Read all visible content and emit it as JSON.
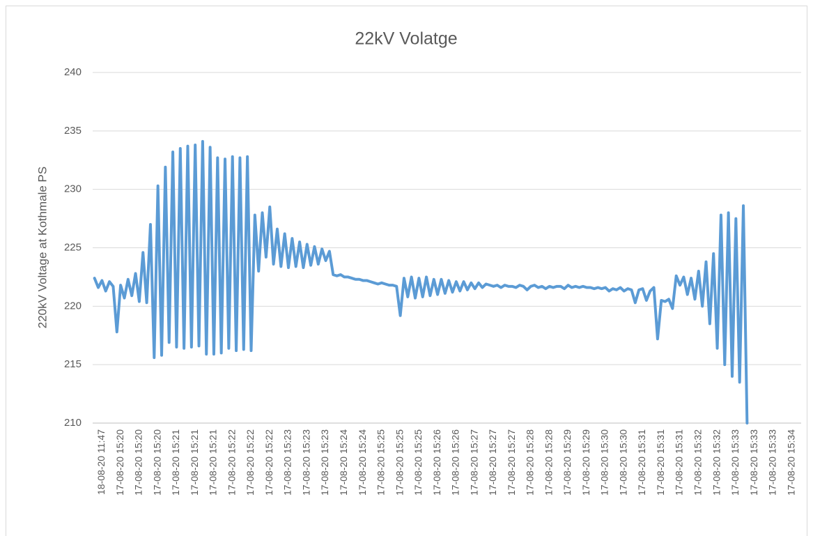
{
  "chart_data": {
    "type": "line",
    "title": "22kV Volatge",
    "y_label": "220kV Voltage at Kothmale PS",
    "categories": [
      null,
      null,
      "18-08-20 11:47",
      null,
      null,
      null,
      null,
      "17-08-20 15:20",
      null,
      null,
      null,
      null,
      "17-08-20 15:20",
      null,
      null,
      null,
      null,
      "17-08-20 15:20",
      null,
      null,
      null,
      null,
      "17-08-20 15:21",
      null,
      null,
      null,
      null,
      "17-08-20 15:21",
      null,
      null,
      null,
      null,
      "17-08-20 15:21",
      null,
      null,
      null,
      null,
      "17-08-20 15:22",
      null,
      null,
      null,
      null,
      "17-08-20 15:22",
      null,
      null,
      null,
      null,
      "17-08-20 15:22",
      null,
      null,
      null,
      null,
      "17-08-20 15:23",
      null,
      null,
      null,
      null,
      "17-08-20 15:23",
      null,
      null,
      null,
      null,
      "17-08-20 15:23",
      null,
      null,
      null,
      null,
      "17-08-20 15:24",
      null,
      null,
      null,
      null,
      "17-08-20 15:24",
      null,
      null,
      null,
      null,
      "17-08-20 15:25",
      null,
      null,
      null,
      null,
      "17-08-20 15:25",
      null,
      null,
      null,
      null,
      "17-08-20 15:25",
      null,
      null,
      null,
      null,
      "17-08-20 15:26",
      null,
      null,
      null,
      null,
      "17-08-20 15:26",
      null,
      null,
      null,
      null,
      "17-08-20 15:27",
      null,
      null,
      null,
      null,
      "17-08-20 15:27",
      null,
      null,
      null,
      null,
      "17-08-20 15:27",
      null,
      null,
      null,
      null,
      "17-08-20 15:28",
      null,
      null,
      null,
      null,
      "17-08-20 15:28",
      null,
      null,
      null,
      null,
      "17-08-20 15:29",
      null,
      null,
      null,
      null,
      "17-08-20 15:29",
      null,
      null,
      null,
      null,
      "17-08-20 15:30",
      null,
      null,
      null,
      null,
      "17-08-20 15:30",
      null,
      null,
      null,
      null,
      "17-08-20 15:31",
      null,
      null,
      null,
      null,
      "17-08-20 15:31",
      null,
      null,
      null,
      null,
      "17-08-20 15:31",
      null,
      null,
      null,
      null,
      "17-08-20 15:32",
      null,
      null,
      null,
      null,
      "17-08-20 15:32",
      null,
      null,
      null,
      null,
      "17-08-20 15:33",
      null,
      null,
      null,
      null,
      "17-08-20 15:33",
      null,
      null,
      null,
      null,
      "17-08-20 15:33",
      null,
      null,
      null,
      null,
      "17-08-20 15:34",
      null,
      null
    ],
    "series": [
      {
        "name": "220kV Voltage at Kothmale PS",
        "color": "#5b9bd5",
        "values": [
          222.4,
          221.6,
          222.2,
          221.3,
          222.1,
          221.7,
          217.8,
          221.8,
          220.7,
          222.3,
          220.9,
          222.8,
          220.4,
          224.6,
          220.3,
          227.0,
          215.6,
          230.3,
          215.8,
          231.9,
          216.9,
          233.2,
          216.5,
          233.5,
          216.4,
          233.7,
          216.5,
          233.8,
          216.6,
          234.1,
          215.9,
          233.6,
          215.9,
          232.7,
          216.0,
          232.6,
          216.4,
          232.8,
          216.2,
          232.7,
          216.3,
          232.8,
          216.2,
          227.8,
          223.0,
          228.0,
          224.2,
          228.5,
          223.6,
          226.6,
          223.4,
          226.2,
          223.3,
          225.8,
          223.4,
          225.5,
          223.3,
          225.3,
          223.5,
          225.1,
          223.6,
          224.9,
          223.9,
          224.7,
          222.7,
          222.6,
          222.7,
          222.5,
          222.5,
          222.4,
          222.3,
          222.3,
          222.2,
          222.2,
          222.1,
          222.0,
          221.9,
          222.0,
          221.9,
          221.8,
          221.8,
          221.7,
          219.2,
          222.4,
          220.8,
          222.5,
          220.7,
          222.4,
          220.8,
          222.5,
          220.9,
          222.3,
          221.0,
          222.3,
          221.1,
          222.2,
          221.2,
          222.1,
          221.3,
          222.1,
          221.4,
          222.0,
          221.5,
          222.0,
          221.6,
          221.9,
          221.8,
          221.7,
          221.8,
          221.6,
          221.8,
          221.7,
          221.7,
          221.6,
          221.8,
          221.7,
          221.4,
          221.7,
          221.8,
          221.6,
          221.7,
          221.5,
          221.7,
          221.6,
          221.7,
          221.7,
          221.5,
          221.8,
          221.6,
          221.7,
          221.6,
          221.7,
          221.6,
          221.6,
          221.5,
          221.6,
          221.5,
          221.6,
          221.3,
          221.5,
          221.4,
          221.6,
          221.3,
          221.5,
          221.4,
          220.3,
          221.4,
          221.5,
          220.5,
          221.3,
          221.6,
          217.2,
          220.5,
          220.4,
          220.6,
          219.8,
          222.6,
          221.8,
          222.5,
          221.0,
          222.4,
          220.6,
          223.0,
          220.0,
          223.8,
          218.5,
          224.5,
          216.4,
          227.8,
          215.0,
          228.0,
          214.0,
          227.5,
          213.5,
          228.6,
          210.0,
          null,
          null,
          null,
          null,
          null,
          null,
          null,
          null,
          null,
          null,
          null,
          null,
          null,
          null
        ]
      }
    ],
    "ylim": [
      210,
      240
    ],
    "yticks": [
      210,
      215,
      220,
      225,
      230,
      235,
      240
    ],
    "grid": true,
    "legend": false
  }
}
